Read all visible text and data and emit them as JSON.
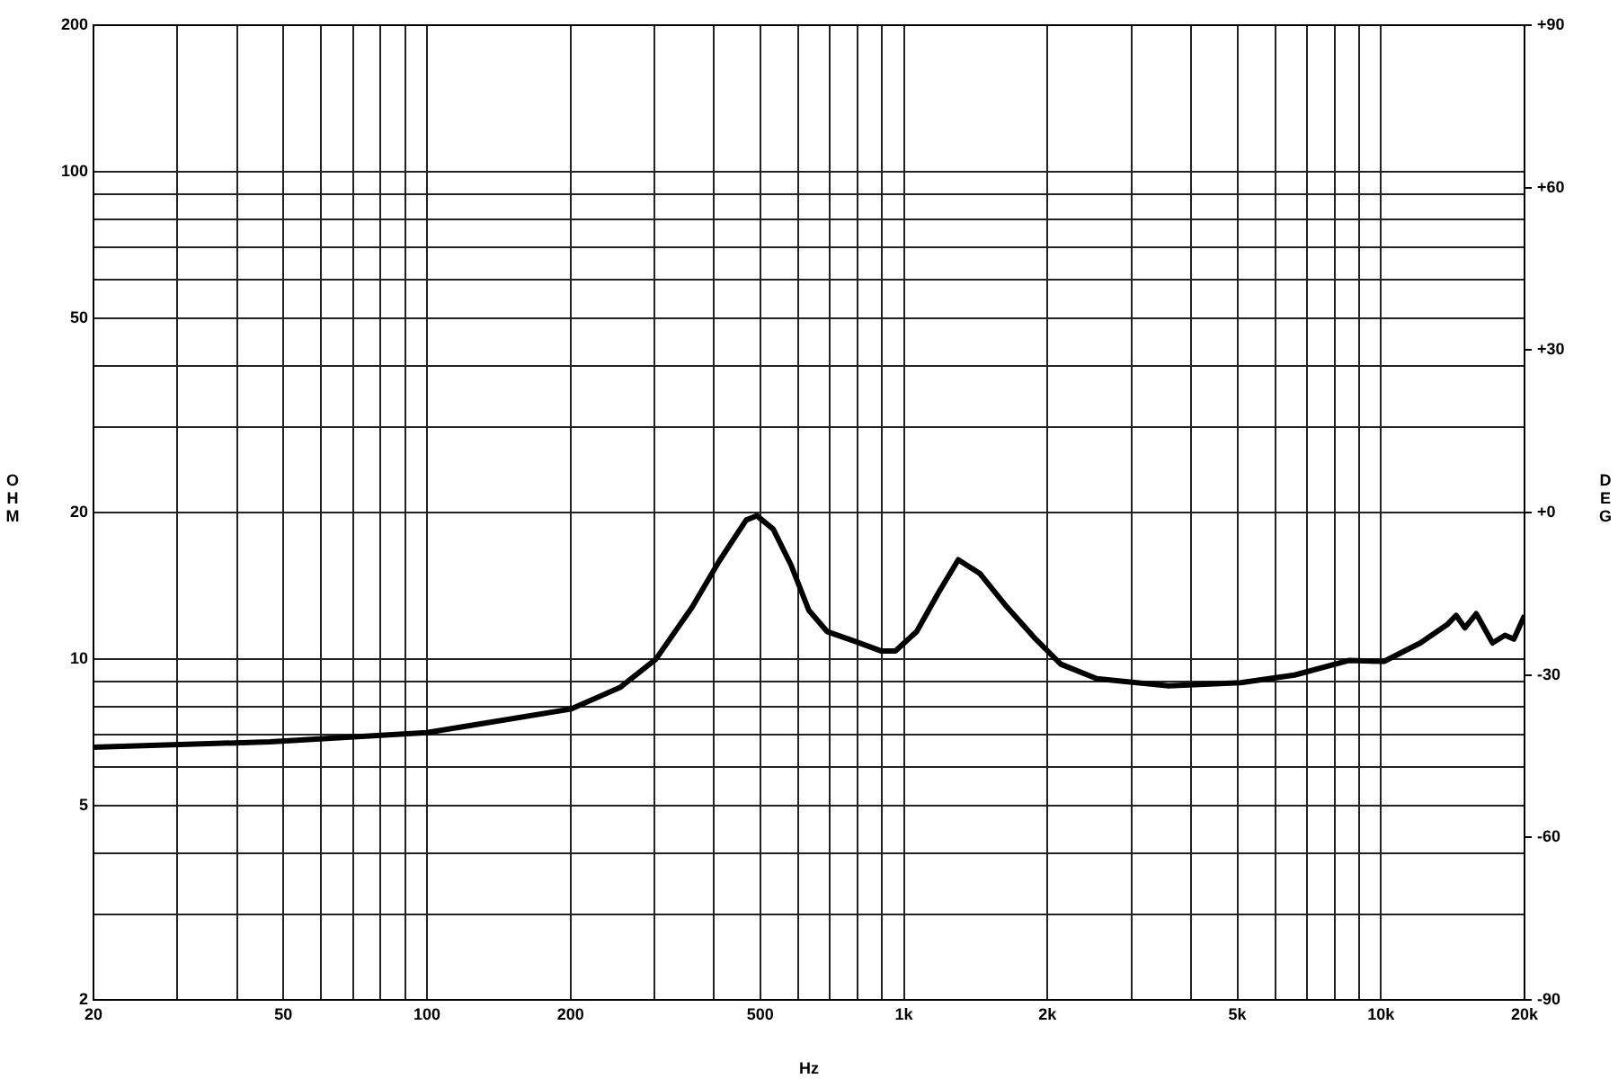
{
  "chart_data": {
    "type": "line",
    "xlabel": "Hz",
    "ylabel": "OHM",
    "y2label": "DEG",
    "log": "xy",
    "grid": true,
    "marker": "none",
    "color": "#000000",
    "x": [
      20,
      46.9,
      100,
      200,
      254,
      302,
      360,
      410,
      467,
      492,
      532,
      580,
      632,
      690,
      786,
      895,
      960,
      1064,
      1182,
      1300,
      1442,
      1644,
      1872,
      2132,
      2536,
      3590,
      5080,
      6590,
      8550,
      10160,
      12100,
      13800,
      14380,
      15000,
      15840,
      17140,
      18200,
      19000,
      20000
    ],
    "values": [
      6.6,
      6.77,
      7.07,
      7.9,
      8.75,
      10,
      12.8,
      15.9,
      19.3,
      19.7,
      18.5,
      15.6,
      12.6,
      11.4,
      10.9,
      10.4,
      10.4,
      11.4,
      13.7,
      16,
      15,
      12.8,
      11.1,
      9.77,
      9.12,
      8.82,
      8.95,
      9.28,
      9.94,
      9.9,
      10.8,
      11.8,
      12.3,
      11.6,
      12.4,
      10.8,
      11.2,
      11,
      12.3
    ],
    "xlim": [
      20,
      20000
    ],
    "xticks": [
      20,
      {
        "value": 30,
        "label": null
      },
      {
        "value": 40,
        "label": null
      },
      50,
      {
        "value": 60,
        "label": null
      },
      {
        "value": 70,
        "label": null
      },
      {
        "value": 80,
        "label": null
      },
      {
        "value": 90,
        "label": null
      },
      100,
      200,
      {
        "value": 300,
        "label": null
      },
      {
        "value": 400,
        "label": null
      },
      500,
      {
        "value": 600,
        "label": null
      },
      {
        "value": 700,
        "label": null
      },
      {
        "value": 800,
        "label": null
      },
      {
        "value": 900,
        "label": null
      },
      {
        "value": 1000,
        "label": "1k"
      },
      {
        "value": 2000,
        "label": "2k"
      },
      {
        "value": 3000,
        "label": null
      },
      {
        "value": 4000,
        "label": null
      },
      {
        "value": 5000,
        "label": "5k"
      },
      {
        "value": 6000,
        "label": null
      },
      {
        "value": 7000,
        "label": null
      },
      {
        "value": 8000,
        "label": null
      },
      {
        "value": 9000,
        "label": null
      },
      {
        "value": 10000,
        "label": "10k"
      },
      {
        "value": 20000,
        "label": "20k"
      }
    ],
    "ylim": [
      2,
      200
    ],
    "yticks": [
      2,
      {
        "value": 3,
        "label": null
      },
      {
        "value": 4,
        "label": null
      },
      5,
      {
        "value": 6,
        "label": null
      },
      {
        "value": 7,
        "label": null
      },
      {
        "value": 8,
        "label": null
      },
      {
        "value": 9,
        "label": null
      },
      10,
      20,
      {
        "value": 30,
        "label": null
      },
      {
        "value": 40,
        "label": null
      },
      50,
      {
        "value": 60,
        "label": null
      },
      {
        "value": 70,
        "label": null
      },
      {
        "value": 80,
        "label": null
      },
      {
        "value": 90,
        "label": null
      },
      100,
      200
    ],
    "y2lim": [
      -90,
      90
    ],
    "y2ticks": [
      -90,
      -60,
      -30,
      {
        "value": 0,
        "label": "+0"
      },
      {
        "value": 30,
        "label": "+30"
      },
      {
        "value": 60,
        "label": "+60"
      },
      {
        "value": 90,
        "label": "+90"
      }
    ]
  }
}
